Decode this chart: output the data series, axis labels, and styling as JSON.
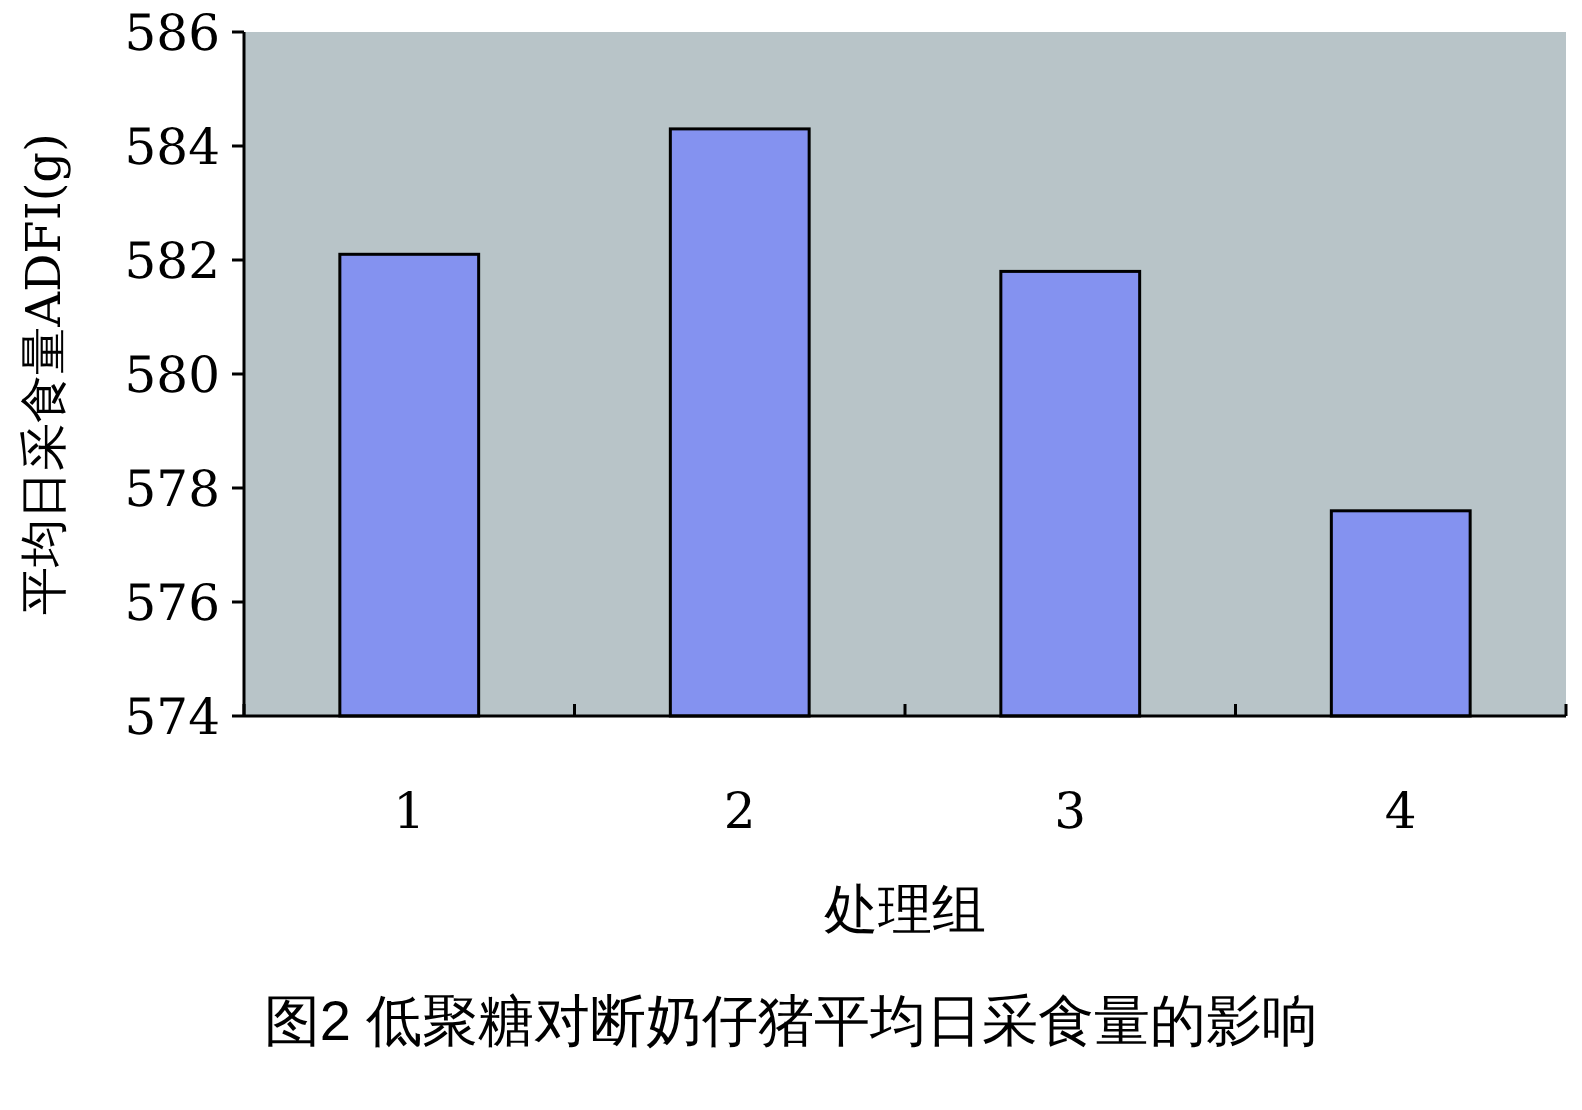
{
  "chart_data": {
    "type": "bar",
    "title": "图2 低聚糖对断奶仔猪平均日采食量的影响",
    "xlabel": "处理组",
    "ylabel": "平均日采食量ADFI(g)",
    "categories": [
      "1",
      "2",
      "3",
      "4"
    ],
    "values": [
      582.1,
      584.3,
      581.8,
      577.6
    ],
    "color": "#8492f0",
    "ylim": [
      574,
      586
    ],
    "yticks": [
      574,
      576,
      578,
      580,
      582,
      584,
      586
    ]
  }
}
